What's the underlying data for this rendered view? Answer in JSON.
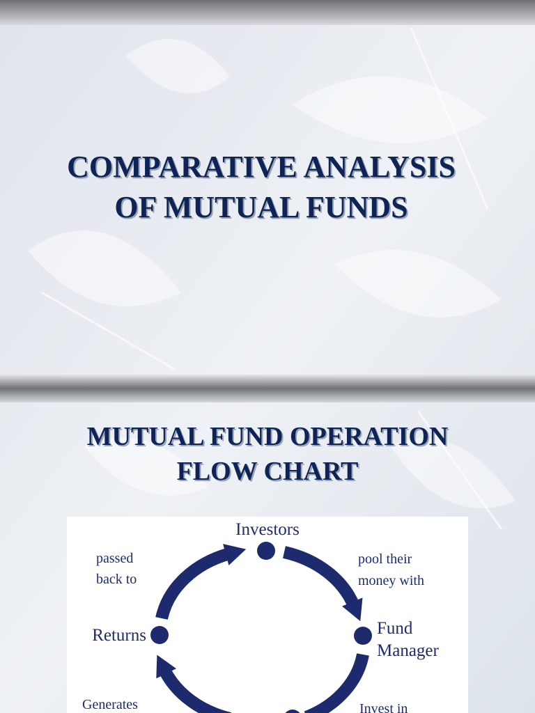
{
  "slides": [
    {
      "title_lines": [
        "COMPARATIVE ANALYSIS",
        "OF MUTUAL FUNDS"
      ]
    },
    {
      "title_lines": [
        "MUTUAL FUND OPERATION",
        "FLOW CHART"
      ],
      "diagram": {
        "nodes": [
          {
            "lines": [
              "Investors"
            ]
          },
          {
            "lines": [
              "Fund",
              "Manager"
            ]
          },
          {
            "lines": [
              "Returns"
            ]
          }
        ],
        "edges": [
          {
            "lines": [
              "pool their",
              "money with"
            ]
          },
          {
            "lines": [
              "Invest in"
            ]
          },
          {
            "lines": [
              "Generates"
            ]
          },
          {
            "lines": [
              "passed",
              "back to"
            ]
          }
        ]
      }
    }
  ]
}
